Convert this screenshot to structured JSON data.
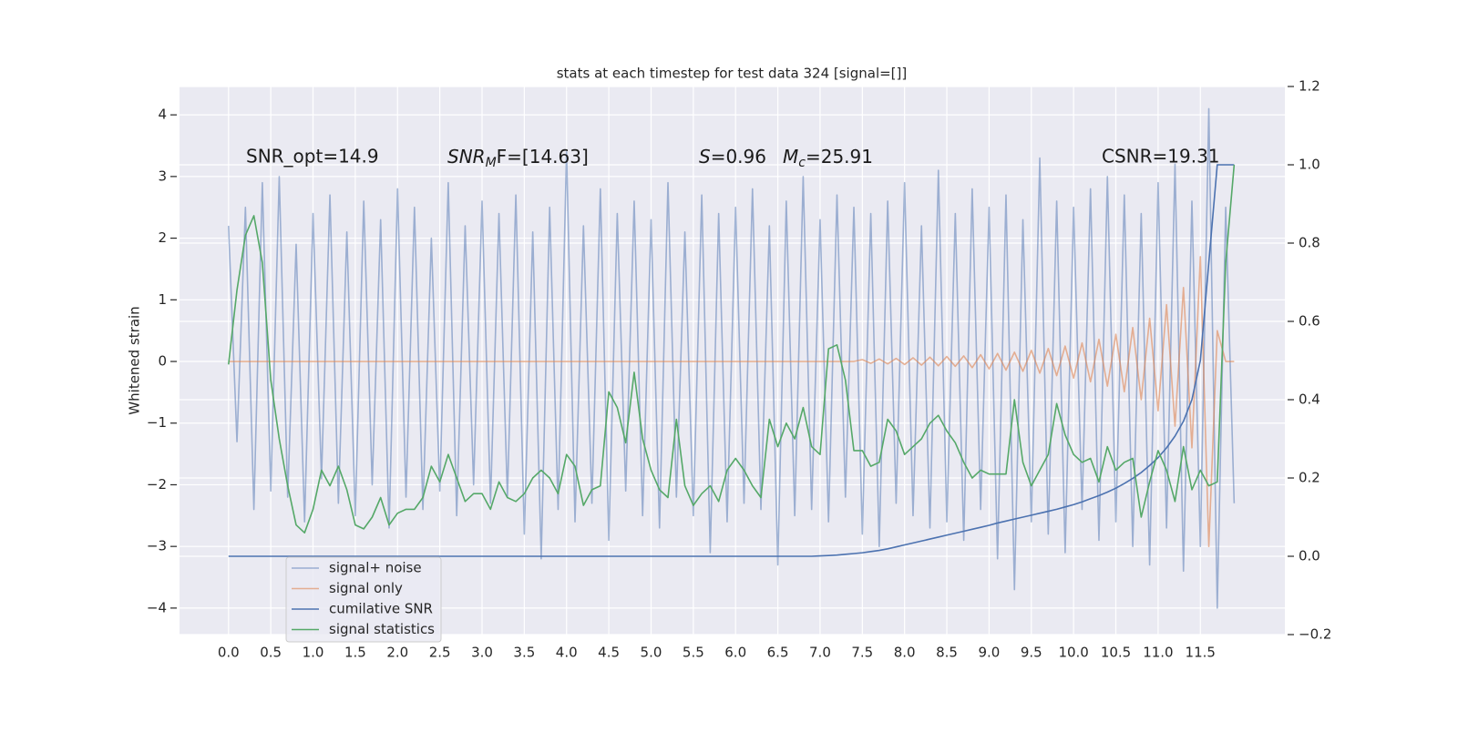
{
  "chart_data": {
    "type": "line",
    "title": "stats at each timestep for test data 324 [signal=[]]",
    "ylabel": "Whitened strain",
    "annotations": [
      "SNR_opt=14.9",
      [
        "SNR",
        "M",
        "F=[14.63]"
      ],
      [
        "S",
        "=0.96"
      ],
      [
        "M",
        "c",
        "=25.91"
      ],
      "CSNR=19.31"
    ],
    "grid": true,
    "legend": "lower left",
    "xlim": [
      -0.58,
      12.5
    ],
    "ylim": [
      -4.43,
      4.46
    ],
    "y2lim": [
      -0.2,
      1.2
    ],
    "xticks": [
      {
        "value": 0,
        "label": "0.0"
      },
      0.5,
      {
        "value": 1,
        "label": "1.0"
      },
      1.5,
      {
        "value": 2,
        "label": "2.0"
      },
      2.5,
      {
        "value": 3,
        "label": "3.0"
      },
      3.5,
      {
        "value": 4,
        "label": "4.0"
      },
      4.5,
      {
        "value": 5,
        "label": "5.0"
      },
      5.5,
      {
        "value": 6,
        "label": "6.0"
      },
      6.5,
      {
        "value": 7,
        "label": "7.0"
      },
      7.5,
      {
        "value": 8,
        "label": "8.0"
      },
      8.5,
      {
        "value": 9,
        "label": "9.0"
      },
      9.5,
      {
        "value": 10,
        "label": "10.0"
      },
      10.5,
      {
        "value": 11,
        "label": "11.0"
      },
      11.5
    ],
    "yticks": [
      {
        "value": -4,
        "label": "−4"
      },
      {
        "value": -3,
        "label": "−3"
      },
      {
        "value": -2,
        "label": "−2"
      },
      {
        "value": -1,
        "label": "−1"
      },
      0,
      1,
      2,
      3,
      4
    ],
    "y2ticks": [
      {
        "value": -0.2,
        "label": "−0.2"
      },
      {
        "value": 0,
        "label": "0.0"
      },
      0.2,
      0.4,
      0.6,
      0.8,
      {
        "value": 1,
        "label": "1.0"
      },
      1.2
    ],
    "x": [
      0,
      0.1,
      0.2,
      0.3,
      0.4,
      0.5,
      0.6,
      0.7,
      0.8,
      0.9,
      1,
      1.1,
      1.2,
      1.3,
      1.4,
      1.5,
      1.6,
      1.7,
      1.8,
      1.9,
      2,
      2.1,
      2.2,
      2.3,
      2.4,
      2.5,
      2.6,
      2.7,
      2.8,
      2.9,
      3,
      3.1,
      3.2,
      3.3,
      3.4,
      3.5,
      3.6,
      3.7,
      3.8,
      3.9,
      4,
      4.1,
      4.2,
      4.3,
      4.4,
      4.5,
      4.6,
      4.7,
      4.8,
      4.9,
      5,
      5.1,
      5.2,
      5.3,
      5.4,
      5.5,
      5.6,
      5.7,
      5.8,
      5.9,
      6,
      6.1,
      6.2,
      6.3,
      6.4,
      6.5,
      6.6,
      6.7,
      6.8,
      6.9,
      7,
      7.1,
      7.2,
      7.3,
      7.4,
      7.5,
      7.6,
      7.7,
      7.8,
      7.9,
      8,
      8.1,
      8.2,
      8.3,
      8.4,
      8.5,
      8.6,
      8.7,
      8.8,
      8.9,
      9,
      9.1,
      9.2,
      9.3,
      9.4,
      9.5,
      9.6,
      9.7,
      9.8,
      9.9,
      10,
      10.1,
      10.2,
      10.3,
      10.4,
      10.5,
      10.6,
      10.7,
      10.8,
      10.9,
      11,
      11.1,
      11.2,
      11.3,
      11.4,
      11.5,
      11.6,
      11.7,
      11.8,
      11.9
    ],
    "series": [
      {
        "name": "signal+ noise",
        "color": "#4c72b0",
        "alpha": 0.5,
        "values": [
          2.2,
          -1.3,
          2.5,
          -2.4,
          2.9,
          -2.1,
          3.0,
          -2.2,
          1.9,
          -2.6,
          2.4,
          -1.9,
          2.7,
          -2.3,
          2.1,
          -2.5,
          2.6,
          -2.0,
          2.3,
          -2.7,
          2.8,
          -2.2,
          2.5,
          -2.4,
          2.0,
          -2.1,
          2.9,
          -2.5,
          2.2,
          -2.0,
          2.6,
          -2.3,
          2.4,
          -2.2,
          2.7,
          -2.8,
          2.1,
          -3.2,
          2.5,
          -2.4,
          3.4,
          -2.6,
          2.2,
          -2.3,
          2.8,
          -2.9,
          2.4,
          -2.1,
          2.6,
          -2.5,
          2.3,
          -2.7,
          2.9,
          -2.2,
          2.1,
          -2.5,
          2.7,
          -3.1,
          2.4,
          -2.6,
          2.5,
          -2.3,
          2.8,
          -2.4,
          2.2,
          -3.3,
          2.6,
          -2.5,
          3.0,
          -2.4,
          2.3,
          -2.6,
          2.7,
          -2.2,
          2.5,
          -2.8,
          2.4,
          -3.0,
          2.6,
          -2.3,
          2.9,
          -2.5,
          2.2,
          -2.7,
          3.1,
          -2.6,
          2.4,
          -2.9,
          2.8,
          -2.4,
          2.5,
          -3.2,
          2.7,
          -3.7,
          2.3,
          -2.6,
          3.3,
          -2.8,
          2.6,
          -3.1,
          2.5,
          -2.4,
          2.8,
          -2.9,
          3.0,
          -2.6,
          2.7,
          -3.0,
          2.4,
          -3.3,
          2.9,
          -2.7,
          3.2,
          -3.4,
          2.6,
          -3.0,
          4.1,
          -4.0,
          2.5,
          -2.3
        ]
      },
      {
        "name": "signal only",
        "color": "#dd8452",
        "alpha": 0.6,
        "values": [
          0,
          0,
          0,
          0,
          0,
          0,
          0,
          0,
          0,
          0,
          0,
          0,
          0,
          0,
          0,
          0,
          0,
          0,
          0,
          0,
          0,
          0,
          0,
          0,
          0,
          0,
          0,
          0,
          0,
          0,
          0,
          0,
          0,
          0,
          0,
          0,
          0,
          0,
          0,
          0,
          0,
          0,
          0,
          0,
          0,
          0,
          0,
          0,
          0,
          0,
          0,
          0,
          0,
          0,
          0,
          0,
          0,
          0,
          0,
          0,
          0,
          0,
          0,
          0,
          0,
          0,
          0,
          0,
          0,
          0,
          0,
          0,
          0,
          0,
          0,
          0.03,
          -0.03,
          0.04,
          -0.04,
          0.05,
          -0.05,
          0.06,
          -0.06,
          0.07,
          -0.07,
          0.08,
          -0.08,
          0.09,
          -0.1,
          0.11,
          -0.12,
          0.13,
          -0.14,
          0.15,
          -0.16,
          0.18,
          -0.19,
          0.21,
          -0.23,
          0.25,
          -0.27,
          0.3,
          -0.33,
          0.36,
          -0.4,
          0.44,
          -0.49,
          0.55,
          -0.62,
          0.7,
          -0.8,
          0.92,
          -1.05,
          1.2,
          -1.4,
          1.7,
          -3.0,
          0.5,
          0,
          0
        ]
      },
      {
        "name": "cumilative SNR",
        "color": "#4c72b0",
        "alpha": 1,
        "axis": "y2",
        "values": [
          0,
          0,
          0,
          0,
          0,
          0,
          0,
          0,
          0,
          0,
          0,
          0,
          0,
          0,
          0,
          0,
          0,
          0,
          0,
          0,
          0,
          0,
          0,
          0,
          0,
          0,
          0,
          0,
          0,
          0,
          0,
          0,
          0,
          0,
          0,
          0,
          0,
          0,
          0,
          0,
          0,
          0,
          0,
          0,
          0,
          0,
          0,
          0,
          0,
          0,
          0,
          0,
          0,
          0,
          0,
          0,
          0,
          0,
          0,
          0,
          0,
          0,
          0,
          0,
          0,
          0,
          0,
          0,
          0,
          0,
          0.001,
          0.002,
          0.003,
          0.005,
          0.007,
          0.009,
          0.012,
          0.015,
          0.019,
          0.024,
          0.029,
          0.034,
          0.039,
          0.044,
          0.049,
          0.054,
          0.059,
          0.064,
          0.069,
          0.074,
          0.079,
          0.085,
          0.09,
          0.095,
          0.1,
          0.105,
          0.11,
          0.115,
          0.12,
          0.126,
          0.132,
          0.139,
          0.147,
          0.155,
          0.164,
          0.174,
          0.186,
          0.199,
          0.214,
          0.232,
          0.252,
          0.277,
          0.307,
          0.345,
          0.4,
          0.5,
          0.75,
          1.0,
          1.0,
          1.0
        ]
      },
      {
        "name": "signal statistics",
        "color": "#55a868",
        "alpha": 1,
        "axis": "y2",
        "values": [
          0.49,
          0.68,
          0.82,
          0.87,
          0.75,
          0.45,
          0.3,
          0.18,
          0.08,
          0.06,
          0.12,
          0.22,
          0.18,
          0.23,
          0.17,
          0.08,
          0.07,
          0.1,
          0.15,
          0.08,
          0.11,
          0.12,
          0.12,
          0.15,
          0.23,
          0.19,
          0.26,
          0.2,
          0.14,
          0.16,
          0.16,
          0.12,
          0.19,
          0.15,
          0.14,
          0.16,
          0.2,
          0.22,
          0.2,
          0.16,
          0.26,
          0.23,
          0.13,
          0.17,
          0.18,
          0.42,
          0.38,
          0.29,
          0.47,
          0.3,
          0.22,
          0.17,
          0.15,
          0.35,
          0.18,
          0.13,
          0.16,
          0.18,
          0.14,
          0.22,
          0.25,
          0.22,
          0.18,
          0.15,
          0.35,
          0.28,
          0.34,
          0.3,
          0.38,
          0.28,
          0.26,
          0.53,
          0.54,
          0.45,
          0.27,
          0.27,
          0.23,
          0.24,
          0.35,
          0.32,
          0.26,
          0.28,
          0.3,
          0.34,
          0.36,
          0.32,
          0.29,
          0.24,
          0.2,
          0.22,
          0.21,
          0.21,
          0.21,
          0.4,
          0.24,
          0.18,
          0.22,
          0.26,
          0.39,
          0.31,
          0.26,
          0.24,
          0.25,
          0.19,
          0.28,
          0.22,
          0.24,
          0.25,
          0.1,
          0.19,
          0.27,
          0.22,
          0.14,
          0.28,
          0.17,
          0.22,
          0.18,
          0.19,
          0.75,
          1.0
        ]
      }
    ]
  }
}
